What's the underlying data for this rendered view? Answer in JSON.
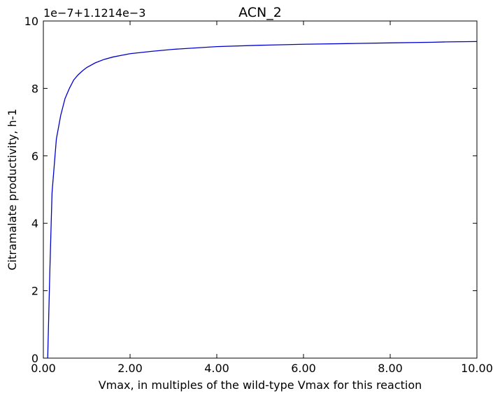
{
  "chart_data": {
    "type": "line",
    "title": "ACN_2",
    "xlabel": "Vmax, in multiples of the wild-type Vmax for this reaction",
    "ylabel": "Citramalate productivity, h-1",
    "y_offset_label": "1e−7+1.1214e−3",
    "xlim": [
      0,
      10
    ],
    "ylim": [
      0,
      10
    ],
    "grid": false,
    "legend": "none",
    "x_ticks": [
      "0.00",
      "2.00",
      "4.00",
      "6.00",
      "8.00",
      "10.00"
    ],
    "y_ticks": [
      "0",
      "2",
      "4",
      "6",
      "8",
      "10"
    ],
    "series": [
      {
        "color": "#0000cc",
        "x": [
          0.1,
          0.15,
          0.2,
          0.3,
          0.4,
          0.5,
          0.6,
          0.7,
          0.8,
          0.9,
          1.0,
          1.2,
          1.4,
          1.6,
          1.8,
          2.0,
          2.5,
          3.0,
          4.0,
          5.0,
          6.0,
          7.0,
          8.0,
          9.0,
          9.3,
          10.0
        ],
        "y": [
          0.0,
          2.6,
          4.9,
          6.5,
          7.2,
          7.7,
          8.0,
          8.25,
          8.4,
          8.52,
          8.62,
          8.76,
          8.86,
          8.93,
          8.98,
          9.03,
          9.1,
          9.16,
          9.24,
          9.28,
          9.31,
          9.33,
          9.35,
          9.37,
          9.38,
          9.39
        ]
      }
    ]
  }
}
